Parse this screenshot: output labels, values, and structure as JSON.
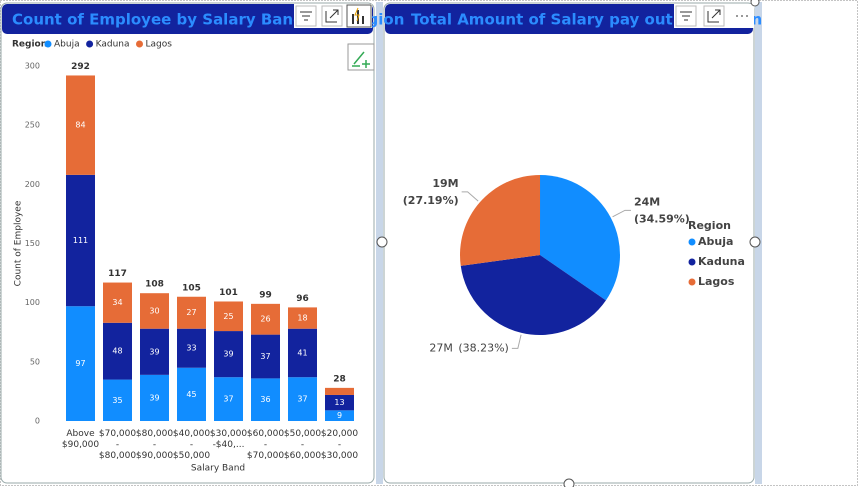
{
  "chart_data": [
    {
      "type": "bar",
      "stacked": true,
      "title": "Count of Employee by Salary Band and Region",
      "x_label": "Salary Band",
      "y_label": "Count of Employee",
      "legend_title": "Region",
      "categories": [
        "Above\n$90,000",
        "$70,000\n-\n$80,000",
        "$80,000\n-\n$90,000",
        "$40,000\n-\n$50,000",
        "$30,000\n-$40,...",
        "$60,000\n-\n$70,000",
        "$50,000\n-\n$60,000",
        "$20,000\n-\n$30,000"
      ],
      "series": [
        {
          "name": "Abuja",
          "color": "#118dff",
          "values": [
            97,
            35,
            39,
            45,
            37,
            36,
            37,
            9
          ]
        },
        {
          "name": "Kaduna",
          "color": "#12239e",
          "values": [
            111,
            48,
            39,
            33,
            39,
            37,
            41,
            13
          ]
        },
        {
          "name": "Lagos",
          "color": "#e66c37",
          "values": [
            84,
            34,
            30,
            27,
            25,
            26,
            18,
            6
          ]
        }
      ],
      "totals": [
        292,
        117,
        108,
        105,
        101,
        99,
        96,
        28
      ],
      "ylim": [
        0,
        300
      ],
      "yticks": [
        0,
        50,
        100,
        150,
        200,
        250,
        300
      ],
      "grid": false
    },
    {
      "type": "pie",
      "title": "Total Amount of Salary pay out by Region",
      "legend_title": "Region",
      "categories": [
        "Abuja",
        "Kaduna",
        "Lagos"
      ],
      "colors": [
        "#118dff",
        "#12239e",
        "#e66c37"
      ],
      "values": [
        24,
        27,
        19
      ],
      "value_labels": [
        "24M",
        "27M",
        "19M"
      ],
      "percents": [
        34.59,
        38.23,
        27.19
      ],
      "percent_labels": [
        "(34.59%)",
        "(38.23%)",
        "(27.19%)"
      ]
    }
  ]
}
